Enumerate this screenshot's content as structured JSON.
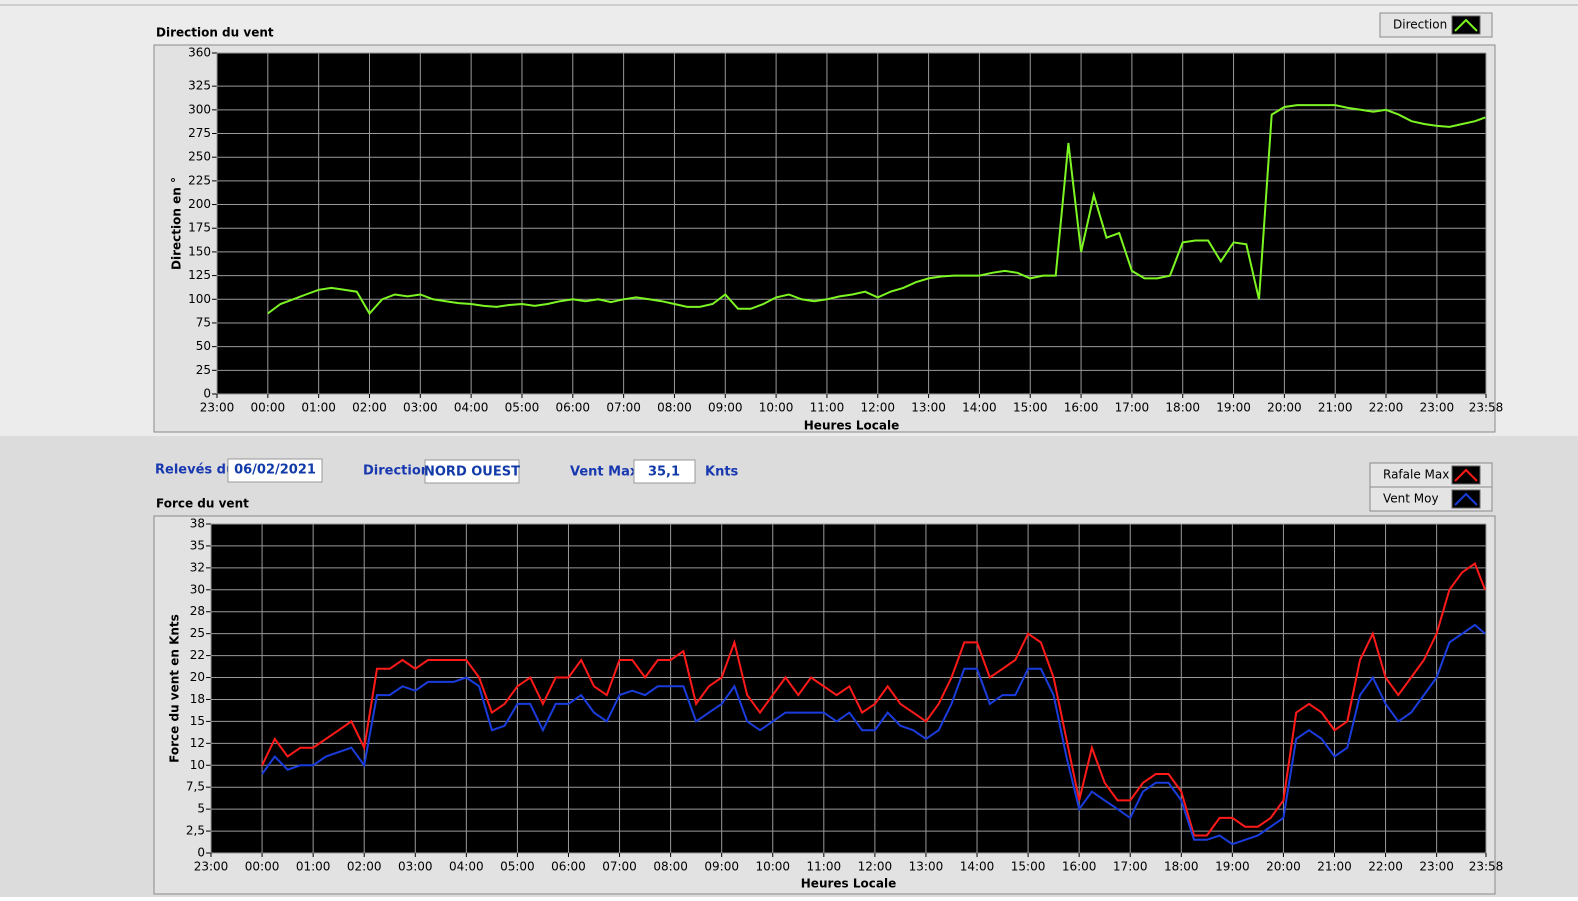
{
  "form": {
    "date_label": "Relevés du",
    "date": "06/02/2021",
    "direction_label": "Direction",
    "direction": "NORD OUEST",
    "vent_max_label": "Vent Max",
    "vent_max": "35,1",
    "unit": "Knts"
  },
  "chart_data": [
    {
      "type": "line",
      "title": "Direction du vent",
      "y_label": "Direction en °",
      "x_label": "Heures Locale",
      "x": [
        0,
        0.25,
        0.5,
        0.75,
        1,
        1.25,
        1.5,
        1.75,
        2,
        2.25,
        2.5,
        2.75,
        3,
        3.25,
        3.5,
        3.75,
        4,
        4.25,
        4.5,
        4.75,
        5,
        5.25,
        5.5,
        5.75,
        6,
        6.25,
        6.5,
        6.75,
        7,
        7.25,
        7.5,
        7.75,
        8,
        8.25,
        8.5,
        8.75,
        9,
        9.25,
        9.5,
        9.75,
        10,
        10.25,
        10.5,
        10.75,
        11,
        11.25,
        11.5,
        11.75,
        12,
        12.25,
        12.5,
        12.75,
        13,
        13.25,
        13.5,
        13.75,
        14,
        14.25,
        14.5,
        14.75,
        15,
        15.25,
        15.5,
        15.75,
        16,
        16.25,
        16.5,
        16.75,
        17,
        17.25,
        17.5,
        17.75,
        18,
        18.25,
        18.5,
        18.75,
        19,
        19.25,
        19.5,
        19.75,
        20,
        20.25,
        20.5,
        20.75,
        21,
        21.25,
        21.5,
        21.75,
        22,
        22.25,
        22.5,
        22.75,
        23,
        23.25,
        23.5,
        23.75,
        23.95
      ],
      "xlim": [
        -1,
        23.9667
      ],
      "xticks": [
        {
          "value": -1,
          "label": "23:00"
        },
        {
          "value": 0,
          "label": "00:00"
        },
        {
          "value": 1,
          "label": "01:00"
        },
        {
          "value": 2,
          "label": "02:00"
        },
        {
          "value": 3,
          "label": "03:00"
        },
        {
          "value": 4,
          "label": "04:00"
        },
        {
          "value": 5,
          "label": "05:00"
        },
        {
          "value": 6,
          "label": "06:00"
        },
        {
          "value": 7,
          "label": "07:00"
        },
        {
          "value": 8,
          "label": "08:00"
        },
        {
          "value": 9,
          "label": "09:00"
        },
        {
          "value": 10,
          "label": "10:00"
        },
        {
          "value": 11,
          "label": "11:00"
        },
        {
          "value": 12,
          "label": "12:00"
        },
        {
          "value": 13,
          "label": "13:00"
        },
        {
          "value": 14,
          "label": "14:00"
        },
        {
          "value": 15,
          "label": "15:00"
        },
        {
          "value": 16,
          "label": "16:00"
        },
        {
          "value": 17,
          "label": "17:00"
        },
        {
          "value": 18,
          "label": "18:00"
        },
        {
          "value": 19,
          "label": "19:00"
        },
        {
          "value": 20,
          "label": "20:00"
        },
        {
          "value": 21,
          "label": "21:00"
        },
        {
          "value": 22,
          "label": "22:00"
        },
        {
          "value": 23,
          "label": "23:00"
        },
        {
          "value": 23.9667,
          "label": "23:58"
        }
      ],
      "ylim": [
        0,
        360
      ],
      "yticks": [
        0,
        25,
        50,
        75,
        100,
        125,
        150,
        175,
        200,
        225,
        250,
        275,
        300,
        325,
        360
      ],
      "grid": true,
      "series": [
        {
          "name": "Direction",
          "color": "#7cf522",
          "values": [
            85,
            95,
            100,
            105,
            110,
            112,
            110,
            108,
            85,
            100,
            105,
            103,
            105,
            100,
            98,
            96,
            95,
            93,
            92,
            94,
            95,
            93,
            95,
            98,
            100,
            98,
            100,
            97,
            100,
            102,
            100,
            98,
            95,
            92,
            92,
            95,
            105,
            90,
            90,
            95,
            102,
            105,
            100,
            98,
            100,
            103,
            105,
            108,
            102,
            108,
            112,
            118,
            122,
            124,
            125,
            125,
            125,
            128,
            130,
            128,
            122,
            125,
            125,
            265,
            150,
            210,
            165,
            170,
            130,
            122,
            122,
            125,
            160,
            162,
            162,
            140,
            160,
            158,
            100,
            295,
            303,
            305,
            305,
            305,
            305,
            302,
            300,
            298,
            300,
            295,
            288,
            285,
            283,
            282,
            285,
            288,
            292
          ]
        }
      ]
    },
    {
      "type": "line",
      "title": "Force du vent",
      "y_label": "Force du vent en Knts",
      "x_label": "Heures Locale",
      "x": [
        0,
        0.25,
        0.5,
        0.75,
        1,
        1.25,
        1.5,
        1.75,
        2,
        2.25,
        2.5,
        2.75,
        3,
        3.25,
        3.5,
        3.75,
        4,
        4.25,
        4.5,
        4.75,
        5,
        5.25,
        5.5,
        5.75,
        6,
        6.25,
        6.5,
        6.75,
        7,
        7.25,
        7.5,
        7.75,
        8,
        8.25,
        8.5,
        8.75,
        9,
        9.25,
        9.5,
        9.75,
        10,
        10.25,
        10.5,
        10.75,
        11,
        11.25,
        11.5,
        11.75,
        12,
        12.25,
        12.5,
        12.75,
        13,
        13.25,
        13.5,
        13.75,
        14,
        14.25,
        14.5,
        14.75,
        15,
        15.25,
        15.5,
        15.75,
        16,
        16.25,
        16.5,
        16.75,
        17,
        17.25,
        17.5,
        17.75,
        18,
        18.25,
        18.5,
        18.75,
        19,
        19.25,
        19.5,
        19.75,
        20,
        20.25,
        20.5,
        20.75,
        21,
        21.25,
        21.5,
        21.75,
        22,
        22.25,
        22.5,
        22.75,
        23,
        23.25,
        23.5,
        23.75,
        23.95
      ],
      "xlim": [
        -1,
        23.9667
      ],
      "xticks": [
        {
          "value": -1,
          "label": "23:00"
        },
        {
          "value": 0,
          "label": "00:00"
        },
        {
          "value": 1,
          "label": "01:00"
        },
        {
          "value": 2,
          "label": "02:00"
        },
        {
          "value": 3,
          "label": "03:00"
        },
        {
          "value": 4,
          "label": "04:00"
        },
        {
          "value": 5,
          "label": "05:00"
        },
        {
          "value": 6,
          "label": "06:00"
        },
        {
          "value": 7,
          "label": "07:00"
        },
        {
          "value": 8,
          "label": "08:00"
        },
        {
          "value": 9,
          "label": "09:00"
        },
        {
          "value": 10,
          "label": "10:00"
        },
        {
          "value": 11,
          "label": "11:00"
        },
        {
          "value": 12,
          "label": "12:00"
        },
        {
          "value": 13,
          "label": "13:00"
        },
        {
          "value": 14,
          "label": "14:00"
        },
        {
          "value": 15,
          "label": "15:00"
        },
        {
          "value": 16,
          "label": "16:00"
        },
        {
          "value": 17,
          "label": "17:00"
        },
        {
          "value": 18,
          "label": "18:00"
        },
        {
          "value": 19,
          "label": "19:00"
        },
        {
          "value": 20,
          "label": "20:00"
        },
        {
          "value": 21,
          "label": "21:00"
        },
        {
          "value": 22,
          "label": "22:00"
        },
        {
          "value": 23,
          "label": "23:00"
        },
        {
          "value": 23.9667,
          "label": "23:58"
        }
      ],
      "ylim": [
        0,
        37.5
      ],
      "yticks": [
        0,
        {
          "value": 2.5,
          "label": "2,5"
        },
        5,
        {
          "value": 7.5,
          "label": "7,5"
        },
        10,
        {
          "value": 12.5,
          "label": "12"
        },
        15,
        {
          "value": 17.5,
          "label": "18"
        },
        20,
        {
          "value": 22.5,
          "label": "22"
        },
        25,
        {
          "value": 27.5,
          "label": "28"
        },
        30,
        {
          "value": 32.5,
          "label": "32"
        },
        35,
        {
          "value": 37.5,
          "label": "38"
        }
      ],
      "grid": true,
      "series": [
        {
          "name": "Rafale Max",
          "color": "#ff1a1a",
          "values": [
            10,
            13,
            11,
            12,
            12,
            13,
            14,
            15,
            12,
            21,
            21,
            22,
            21,
            22,
            22,
            22,
            22,
            20,
            16,
            17,
            19,
            20,
            17,
            20,
            20,
            22,
            19,
            18,
            22,
            22,
            20,
            22,
            22,
            23,
            17,
            19,
            20,
            24,
            18,
            16,
            18,
            20,
            18,
            20,
            19,
            18,
            19,
            16,
            17,
            19,
            17,
            16,
            15,
            17,
            20,
            24,
            24,
            20,
            21,
            22,
            25,
            24,
            20,
            13,
            6,
            12,
            8,
            6,
            6,
            8,
            9,
            9,
            7,
            2,
            2,
            4,
            4,
            3,
            3,
            4,
            6,
            16,
            17,
            16,
            14,
            15,
            22,
            25,
            20,
            18,
            20,
            22,
            25,
            30,
            32,
            33,
            30
          ]
        },
        {
          "name": "Vent Moy",
          "color": "#1a3cdc",
          "values": [
            9,
            11,
            9.5,
            10,
            10,
            11,
            11.5,
            12,
            10,
            18,
            18,
            19,
            18.5,
            19.5,
            19.5,
            19.5,
            20,
            19,
            14,
            14.5,
            17,
            17,
            14,
            17,
            17,
            18,
            16,
            15,
            18,
            18.5,
            18,
            19,
            19,
            19,
            15,
            16,
            17,
            19,
            15,
            14,
            15,
            16,
            16,
            16,
            16,
            15,
            16,
            14,
            14,
            16,
            14.5,
            14,
            13,
            14,
            17,
            21,
            21,
            17,
            18,
            18,
            21,
            21,
            18,
            11,
            5,
            7,
            6,
            5,
            4,
            7,
            8,
            8,
            6,
            1.5,
            1.5,
            2,
            1,
            1.5,
            2,
            3,
            4,
            13,
            14,
            13,
            11,
            12,
            18,
            20,
            17,
            15,
            16,
            18,
            20,
            24,
            25,
            26,
            25
          ]
        }
      ]
    }
  ]
}
